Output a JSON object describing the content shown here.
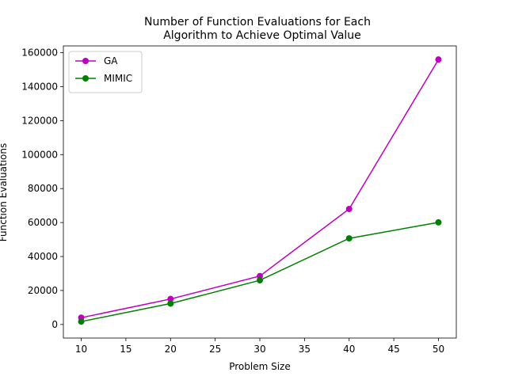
{
  "chart_data": {
    "type": "line",
    "title_lines": [
      "Number of Function Evaluations for Each",
      "Algorithm to Achieve Optimal Value"
    ],
    "xlabel": "Problem Size",
    "ylabel": "Function Evaluations",
    "x": [
      10,
      20,
      30,
      40,
      50
    ],
    "xlim": [
      8,
      52
    ],
    "ylim": [
      -8000,
      164000
    ],
    "xticks": [
      10,
      15,
      20,
      25,
      30,
      35,
      40,
      45,
      50
    ],
    "yticks": [
      0,
      20000,
      40000,
      60000,
      80000,
      100000,
      120000,
      140000,
      160000
    ],
    "grid": false,
    "legend_position": "upper-left",
    "series": [
      {
        "name": "GA",
        "color": "#bf00bf",
        "marker": "circle",
        "values": [
          4000,
          15000,
          28500,
          68000,
          156000
        ]
      },
      {
        "name": "MIMIC",
        "color": "#008000",
        "marker": "circle",
        "values": [
          1700,
          12300,
          26000,
          50700,
          60100
        ]
      }
    ]
  }
}
